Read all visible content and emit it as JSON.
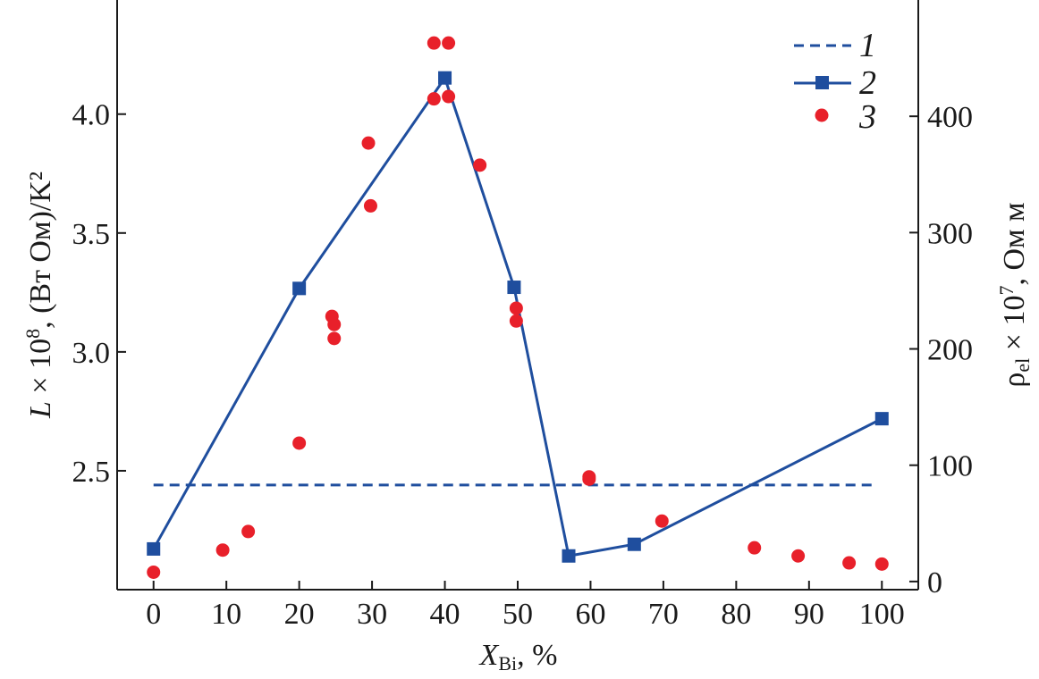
{
  "chart_data": {
    "type": "line",
    "x_axis": {
      "label_main": "X",
      "label_sub": "Bi",
      "label_unit": ", %",
      "range": [
        -5,
        105
      ],
      "ticks": [
        0,
        10,
        20,
        30,
        40,
        50,
        60,
        70,
        80,
        90,
        100
      ],
      "tick_labels": [
        "0",
        "10",
        "20",
        "30",
        "40",
        "50",
        "60",
        "70",
        "80",
        "90",
        "100"
      ]
    },
    "y_left": {
      "label_main": "L",
      "label_mid": " × 10",
      "label_exp": "8",
      "label_tail": ", (Вт Ом)/K²",
      "range": [
        2.0,
        4.48
      ],
      "ticks": [
        2.5,
        3.0,
        3.5,
        4.0
      ],
      "tick_labels": [
        "2.5",
        "3.0",
        "3.5",
        "4.0"
      ]
    },
    "y_right": {
      "label_main": "ρ",
      "label_sub": "el",
      "label_mid": " × 10",
      "label_exp": "7",
      "label_tail": ", Ом м",
      "range": [
        -7,
        500
      ],
      "ticks": [
        0,
        100,
        200,
        300,
        400
      ],
      "tick_labels": [
        "0",
        "100",
        "200",
        "300",
        "400"
      ]
    },
    "legend": {
      "position": "top-right",
      "entries": [
        "1",
        "2",
        "3"
      ]
    },
    "series": [
      {
        "name": "1",
        "style": "dashed",
        "axis": "left",
        "color": "#1f4e9e",
        "x": [
          0,
          99
        ],
        "y": [
          2.44,
          2.44
        ]
      },
      {
        "name": "2",
        "style": "line-square",
        "axis": "right",
        "color": "#1f4e9e",
        "x": [
          0,
          20,
          40,
          49.5,
          57,
          66,
          100
        ],
        "y": [
          28,
          252,
          433,
          253,
          22,
          32,
          140
        ]
      },
      {
        "name": "3",
        "style": "dots",
        "axis": "right",
        "color": "#e8202a",
        "x": [
          0,
          9.5,
          13,
          20,
          24.5,
          24.8,
          24.8,
          29.5,
          29.8,
          38.5,
          38.5,
          40.5,
          40.5,
          44.8,
          49.8,
          49.8,
          59.8,
          59.8,
          69.8,
          82.5,
          88.5,
          95.5,
          100
        ],
        "y": [
          8,
          27,
          43,
          119,
          228,
          221,
          209,
          377,
          323,
          463,
          415,
          463,
          417,
          358,
          235,
          224,
          90,
          88,
          52,
          29,
          22,
          16,
          15
        ]
      }
    ]
  }
}
